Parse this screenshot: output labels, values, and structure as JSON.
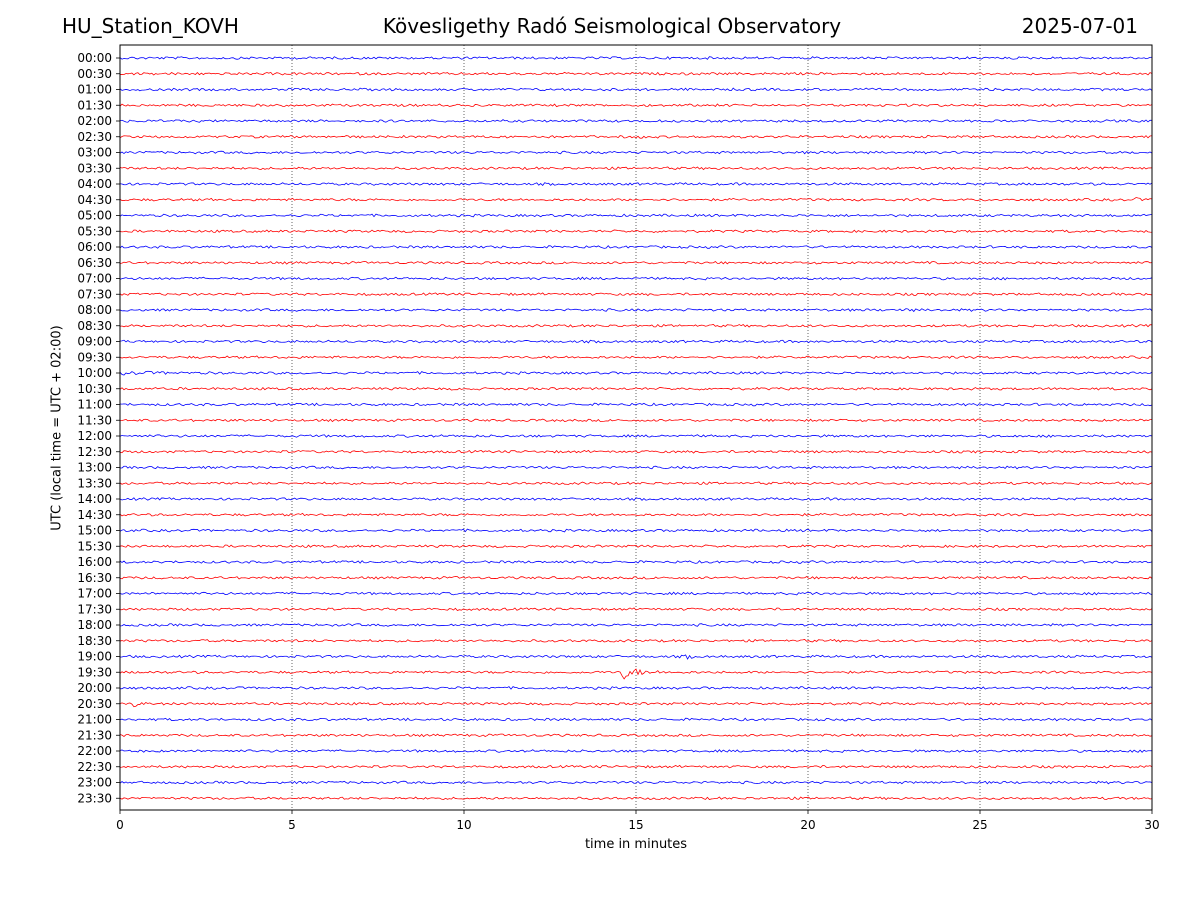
{
  "header": {
    "station": "HU_Station_KOVH",
    "observatory": "Kövesligethy Radó Seismological Observatory",
    "date": "2025-07-01"
  },
  "chart_data": {
    "type": "line",
    "xlabel": "time in minutes",
    "ylabel": "UTC (local time = UTC + 02:00)",
    "xlim": [
      0,
      30
    ],
    "x_ticks": [
      0,
      5,
      10,
      15,
      20,
      25,
      30
    ],
    "vertical_grid": "dotted",
    "trace_colors": [
      "#0000ff",
      "#ff0000"
    ],
    "y_tick_labels": [
      "00:00",
      "00:30",
      "01:00",
      "01:30",
      "02:00",
      "02:30",
      "03:00",
      "03:30",
      "04:00",
      "04:30",
      "05:00",
      "05:30",
      "06:00",
      "06:30",
      "07:00",
      "07:30",
      "08:00",
      "08:30",
      "09:00",
      "09:30",
      "10:00",
      "10:30",
      "11:00",
      "11:30",
      "12:00",
      "12:30",
      "13:00",
      "13:30",
      "14:00",
      "14:30",
      "15:00",
      "15:30",
      "16:00",
      "16:30",
      "17:00",
      "17:30",
      "18:00",
      "18:30",
      "19:00",
      "19:30",
      "20:00",
      "20:30",
      "21:00",
      "21:30",
      "22:00",
      "22:30",
      "23:00",
      "23:30"
    ],
    "events": [
      {
        "row": "19:30",
        "start_min": 14.5,
        "end_min": 16.0,
        "strength": 0.9
      },
      {
        "row": "20:30",
        "start_min": 0.3,
        "end_min": 0.9,
        "strength": 0.5
      },
      {
        "row": "19:00",
        "start_min": 16.4,
        "end_min": 17.0,
        "strength": 0.25
      },
      {
        "row": "08:00",
        "start_min": 22.8,
        "end_min": 23.3,
        "strength": 0.2
      },
      {
        "row": "02:30",
        "start_min": 15.1,
        "end_min": 15.6,
        "strength": 0.15
      },
      {
        "row": "04:30",
        "start_min": 29.5,
        "end_min": 30.0,
        "strength": 0.15
      },
      {
        "row": "10:00",
        "start_min": 0.0,
        "end_min": 4.0,
        "strength": 0.12
      },
      {
        "row": "17:00",
        "start_min": 19.9,
        "end_min": 20.5,
        "strength": 0.12
      }
    ]
  }
}
